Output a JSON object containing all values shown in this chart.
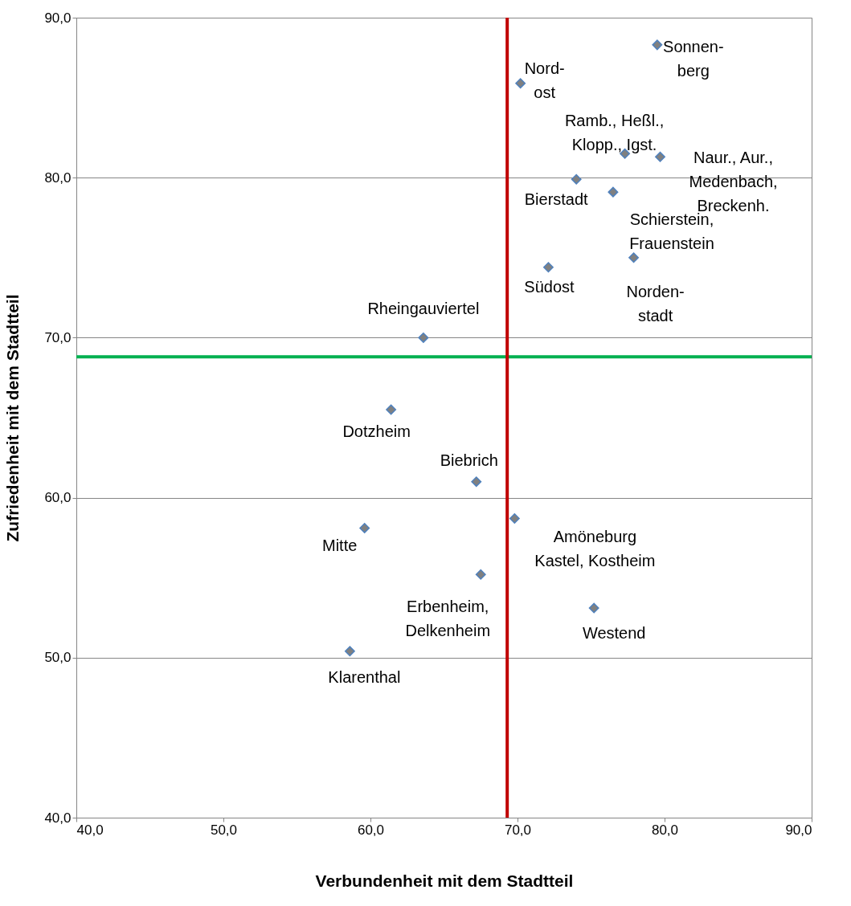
{
  "chart_data": {
    "type": "scatter",
    "xlabel": "Verbundenheit mit dem Stadtteil",
    "ylabel": "Zufriedenheit mit dem Stadtteil",
    "x": [
      79.5,
      70.2,
      77.3,
      79.7,
      74.0,
      76.5,
      72.1,
      77.9,
      63.6,
      61.4,
      67.2,
      69.8,
      59.6,
      67.5,
      75.2,
      58.6
    ],
    "series": [
      {
        "color": "#808080",
        "values": [
          88.3,
          85.9,
          81.5,
          81.3,
          79.9,
          79.1,
          74.4,
          75.0,
          70.0,
          65.5,
          61.0,
          58.7,
          58.1,
          55.2,
          53.1,
          50.4
        ]
      }
    ],
    "marker": "diamond",
    "xlim": [
      40,
      90
    ],
    "ylim": [
      40,
      90
    ],
    "xticks": [
      {
        "value": 40,
        "label": "40,0"
      },
      {
        "value": 50,
        "label": "50,0"
      },
      {
        "value": 60,
        "label": "60,0"
      },
      {
        "value": 70,
        "label": "70,0"
      },
      {
        "value": 80,
        "label": "80,0"
      },
      {
        "value": 90,
        "label": "90,0"
      }
    ],
    "yticks": [
      {
        "value": 40,
        "label": "40,0"
      },
      {
        "value": 50,
        "label": "50,0"
      },
      {
        "value": 60,
        "label": "60,0"
      },
      {
        "value": 70,
        "label": "70,0"
      },
      {
        "value": 80,
        "label": "80,0"
      },
      {
        "value": 90,
        "label": "90,0"
      }
    ],
    "grid": "y",
    "ref_lines": [
      {
        "axis": "x",
        "value": 69.3,
        "color": "#c00000"
      },
      {
        "axis": "y",
        "value": 68.8,
        "color": "#00b050"
      }
    ],
    "annotations": [
      {
        "text": "Sonnen-\nberg",
        "x": 79.5,
        "y": 88.3
      },
      {
        "text": "Nord-\nost",
        "x": 70.2,
        "y": 85.9
      },
      {
        "text": "Ramb., Heßl.,\nKlopp., Igst.",
        "x": 77.3,
        "y": 81.5
      },
      {
        "text": "Naur., Aur.,\nMedenbach,\nBreckenh.",
        "x": 79.7,
        "y": 81.3
      },
      {
        "text": "Bierstadt",
        "x": 74.0,
        "y": 79.9
      },
      {
        "text": "Schierstein,\nFrauenstein",
        "x": 76.5,
        "y": 79.1
      },
      {
        "text": "Südost",
        "x": 72.1,
        "y": 74.4
      },
      {
        "text": "Norden-\nstadt",
        "x": 77.9,
        "y": 75.0
      },
      {
        "text": "Rheingauviertel",
        "x": 63.6,
        "y": 70.0
      },
      {
        "text": "Dotzheim",
        "x": 61.4,
        "y": 65.5
      },
      {
        "text": "Biebrich",
        "x": 67.2,
        "y": 61.0
      },
      {
        "text": "Amöneburg\nKastel, Kostheim",
        "x": 69.8,
        "y": 58.7
      },
      {
        "text": "Mitte",
        "x": 59.6,
        "y": 58.1
      },
      {
        "text": "Erbenheim,\nDelkenheim",
        "x": 67.5,
        "y": 55.2
      },
      {
        "text": "Westend",
        "x": 75.2,
        "y": 53.1
      },
      {
        "text": "Klarenthal",
        "x": 58.6,
        "y": 50.4
      }
    ]
  }
}
